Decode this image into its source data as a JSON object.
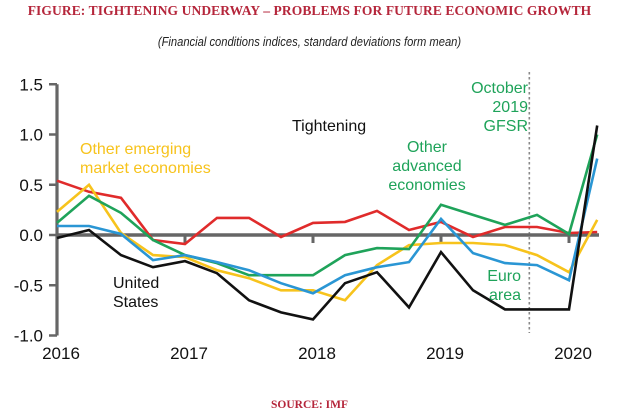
{
  "header": {
    "title": "FIGURE: TIGHTENING UNDERWAY – PROBLEMS FOR FUTURE ECONOMIC GROWTH",
    "subtitle": "(Financial conditions indices, standard deviations form mean)"
  },
  "footer": {
    "source": "SOURCE: IMF"
  },
  "colors": {
    "title": "#b5263b",
    "axis": "#666666",
    "red": "#e02b2b",
    "yellow": "#f7c31c",
    "green": "#1fa35a",
    "blue": "#2a96d4",
    "black": "#111111"
  },
  "chart_data": {
    "type": "line",
    "title": "TIGHTENING UNDERWAY – PROBLEMS FOR FUTURE ECONOMIC GROWTH",
    "subtitle": "(Financial conditions indices, standard deviations form mean)",
    "xlabel": "",
    "ylabel": "",
    "ylim": [
      -1.0,
      1.5
    ],
    "xlim": [
      2016.0,
      2020.25
    ],
    "yticks": [
      -1.0,
      -0.5,
      0.0,
      0.5,
      1.0,
      1.5
    ],
    "ytick_labels": [
      "-1.0",
      "-0.5",
      "0.0",
      "0.5",
      "1.0",
      "1.5"
    ],
    "xticks": [
      2016,
      2017,
      2018,
      2019,
      2020
    ],
    "xtick_labels": [
      "2016",
      "2017",
      "2018",
      "2019",
      "2020"
    ],
    "grid": false,
    "legend": "inline-labels",
    "x": [
      2016.0,
      2016.25,
      2016.5,
      2016.75,
      2017.0,
      2017.25,
      2017.5,
      2017.75,
      2018.0,
      2018.25,
      2018.5,
      2018.75,
      2019.0,
      2019.25,
      2019.5,
      2019.75,
      2020.0,
      2020.22
    ],
    "series": [
      {
        "name": "Unlabeled (red)",
        "color_key": "red",
        "values": [
          0.54,
          0.43,
          0.37,
          -0.05,
          -0.09,
          0.17,
          0.17,
          -0.02,
          0.12,
          0.13,
          0.24,
          0.05,
          0.13,
          -0.02,
          0.08,
          0.08,
          0.02,
          0.03
        ]
      },
      {
        "name": "Other emerging market economies",
        "color_key": "yellow",
        "values": [
          0.23,
          0.5,
          0.02,
          -0.2,
          -0.22,
          -0.35,
          -0.43,
          -0.55,
          -0.55,
          -0.65,
          -0.3,
          -0.1,
          -0.08,
          -0.08,
          -0.1,
          -0.2,
          -0.37,
          0.15
        ]
      },
      {
        "name": "Other advanced economies",
        "color_key": "green",
        "values": [
          0.12,
          0.39,
          0.22,
          -0.05,
          -0.2,
          -0.28,
          -0.4,
          -0.4,
          -0.4,
          -0.2,
          -0.13,
          -0.14,
          0.3,
          0.2,
          0.1,
          0.2,
          0.01,
          1.0
        ]
      },
      {
        "name": "Euro area",
        "color_key": "blue",
        "values": [
          0.09,
          0.09,
          0.01,
          -0.25,
          -0.2,
          -0.27,
          -0.35,
          -0.48,
          -0.58,
          -0.4,
          -0.32,
          -0.27,
          0.16,
          -0.18,
          -0.28,
          -0.3,
          -0.45,
          0.76
        ]
      },
      {
        "name": "United States",
        "color_key": "black",
        "values": [
          -0.03,
          0.05,
          -0.2,
          -0.32,
          -0.26,
          -0.38,
          -0.65,
          -0.77,
          -0.84,
          -0.48,
          -0.37,
          -0.72,
          -0.17,
          -0.55,
          -0.74,
          -0.74,
          -0.74,
          1.09
        ]
      }
    ],
    "reference_line": {
      "x": 2019.69,
      "style": "dashed",
      "label": "October 2019 GFSR"
    },
    "annotations": [
      {
        "id": "tightening",
        "lines": [
          "Tightening"
        ],
        "color_key": "black"
      },
      {
        "id": "emerging",
        "lines": [
          "Other emerging",
          "market economies"
        ],
        "color_key": "yellow"
      },
      {
        "id": "advanced",
        "lines": [
          "Other",
          "advanced",
          "economies"
        ],
        "color_key": "green"
      },
      {
        "id": "gfsr",
        "lines": [
          "October",
          "2019",
          "GFSR"
        ],
        "color_key": "green"
      },
      {
        "id": "us",
        "lines": [
          "United",
          "States"
        ],
        "color_key": "black"
      },
      {
        "id": "euro",
        "lines": [
          "Euro",
          "area"
        ],
        "color_key": "green"
      }
    ]
  }
}
